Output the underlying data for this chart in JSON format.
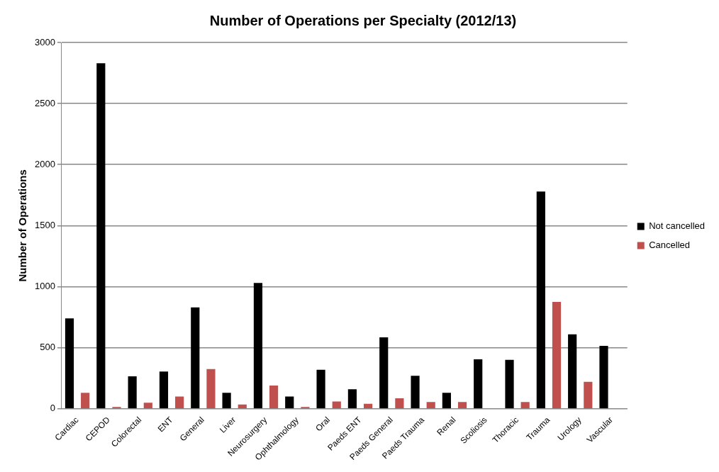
{
  "chart_data": {
    "type": "bar",
    "title": "Number of Operations per Specialty (2012/13)",
    "ylabel": "Number of Operations",
    "categories": [
      "Cardiac",
      "CEPOD",
      "Colorectal",
      "ENT",
      "General",
      "Liver",
      "Neurosurgery",
      "Ophthalmology",
      "Oral",
      "Paeds ENT",
      "Paeds General",
      "Paeds Trauma",
      "Renal",
      "Scoliosis",
      "Thoracic",
      "Trauma",
      "Urology",
      "Vascular"
    ],
    "series": [
      {
        "name": "Not cancelled",
        "color": "#000000",
        "values": [
          740,
          2830,
          265,
          305,
          830,
          130,
          1030,
          100,
          320,
          160,
          585,
          270,
          130,
          405,
          400,
          1780,
          610,
          515
        ]
      },
      {
        "name": "Cancelled",
        "color": "#c0504d",
        "values": [
          130,
          15,
          50,
          100,
          325,
          35,
          190,
          15,
          60,
          40,
          85,
          55,
          55,
          0,
          55,
          875,
          220,
          0
        ]
      }
    ],
    "ylim": [
      0,
      3000
    ],
    "yticks": [
      0,
      500,
      1000,
      1500,
      2000,
      2500,
      3000
    ],
    "grid": "y",
    "legend": "right"
  }
}
